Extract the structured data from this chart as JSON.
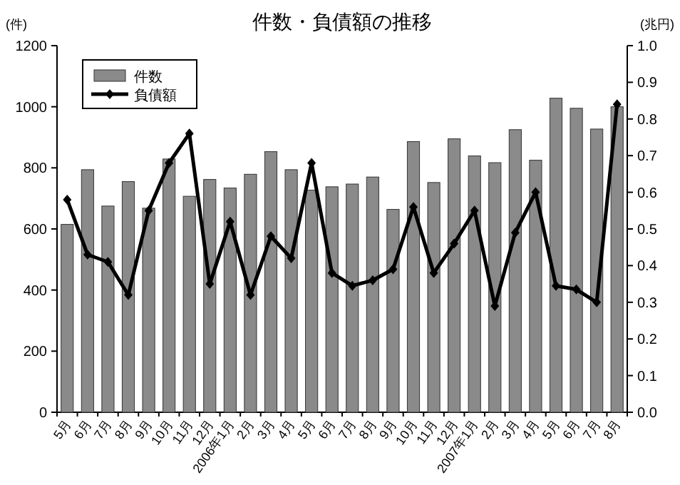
{
  "chart_data": {
    "type": "bar",
    "title": "件数・負債額の推移",
    "ylabel": "(件)",
    "y2label": "(兆円)",
    "categories": [
      "5月",
      "6月",
      "7月",
      "8月",
      "9月",
      "10月",
      "11月",
      "12月",
      "2006年1月",
      "2月",
      "3月",
      "4月",
      "5月",
      "6月",
      "7月",
      "8月",
      "9月",
      "10月",
      "11月",
      "12月",
      "2007年1月",
      "2月",
      "3月",
      "4月",
      "5月",
      "6月",
      "7月",
      "8月"
    ],
    "series": [
      {
        "name": "件数",
        "color": "#8a8a8a",
        "values": [
          615,
          794,
          675,
          755,
          668,
          829,
          707,
          762,
          734,
          779,
          853,
          794,
          727,
          738,
          747,
          770,
          664,
          886,
          752,
          895,
          839,
          817,
          925,
          825,
          1028,
          995,
          927,
          1000
        ]
      },
      {
        "name": "負債額",
        "type": "line",
        "axis": "y2",
        "color": "#000000",
        "marker": "diamond",
        "line_style": "solid",
        "values": [
          0.58,
          0.43,
          0.41,
          0.32,
          0.55,
          0.68,
          0.76,
          0.35,
          0.52,
          0.32,
          0.48,
          0.42,
          0.68,
          0.38,
          0.345,
          0.36,
          0.39,
          0.56,
          0.38,
          0.46,
          0.55,
          0.29,
          0.49,
          0.6,
          0.345,
          0.335,
          0.3,
          0.84
        ]
      }
    ],
    "ylim": [
      0,
      1200
    ],
    "yticks": [
      0,
      200,
      400,
      600,
      800,
      1000,
      1200
    ],
    "y2lim": [
      0,
      1
    ],
    "y2ticks": [
      {
        "value": 0,
        "label": "0.0"
      },
      {
        "value": 0.1,
        "label": "0.1"
      },
      {
        "value": 0.2,
        "label": "0.2"
      },
      {
        "value": 0.3,
        "label": "0.3"
      },
      {
        "value": 0.4,
        "label": "0.4"
      },
      {
        "value": 0.5,
        "label": "0.5"
      },
      {
        "value": 0.6,
        "label": "0.6"
      },
      {
        "value": 0.7,
        "label": "0.7"
      },
      {
        "value": 0.8,
        "label": "0.8"
      },
      {
        "value": 0.9,
        "label": "0.9"
      },
      {
        "value": 1,
        "label": "1.0"
      }
    ],
    "grid": false,
    "legend": "top left"
  }
}
